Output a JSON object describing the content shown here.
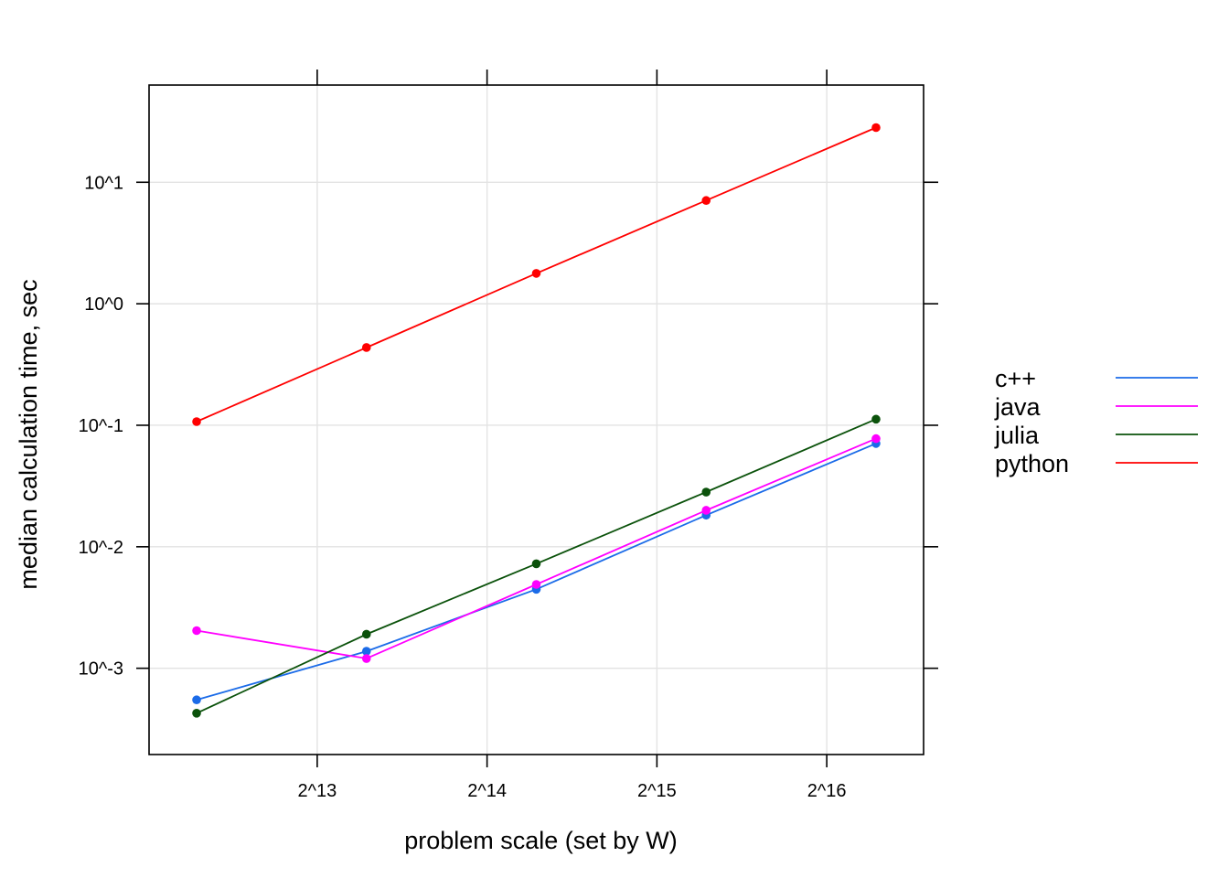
{
  "chart_data": {
    "type": "line",
    "xlabel": "problem scale (set by W)",
    "ylabel": "median calculation time, sec",
    "x_scale": "log2",
    "y_scale": "log10",
    "grid": true,
    "legend_position": "right",
    "x_ticks": [
      {
        "label": "2^13",
        "exp": 13
      },
      {
        "label": "2^14",
        "exp": 14
      },
      {
        "label": "2^15",
        "exp": 15
      },
      {
        "label": "2^16",
        "exp": 16
      }
    ],
    "y_ticks": [
      {
        "label": "10^1",
        "exp": 1
      },
      {
        "label": "10^0",
        "exp": 0
      },
      {
        "label": "10^-1",
        "exp": -1
      },
      {
        "label": "10^-2",
        "exp": -2
      },
      {
        "label": "10^-3",
        "exp": -3
      }
    ],
    "xlim_log2": [
      12.01,
      16.57
    ],
    "ylim_log10": [
      -3.71,
      1.8
    ],
    "x_log2": [
      12.29,
      13.29,
      14.29,
      15.29,
      16.29
    ],
    "series": [
      {
        "name": "c++",
        "color": "#1B6BE8",
        "y_log10": [
          -3.26,
          -2.86,
          -2.35,
          -1.74,
          -1.15
        ]
      },
      {
        "name": "java",
        "color": "#FF00FF",
        "y_log10": [
          -2.69,
          -2.92,
          -2.31,
          -1.7,
          -1.11
        ]
      },
      {
        "name": "julia",
        "color": "#0B520B",
        "y_log10": [
          -3.37,
          -2.72,
          -2.14,
          -1.55,
          -0.95
        ]
      },
      {
        "name": "python",
        "color": "#FF0000",
        "y_log10": [
          -0.97,
          -0.36,
          0.25,
          0.85,
          1.45
        ]
      }
    ]
  }
}
